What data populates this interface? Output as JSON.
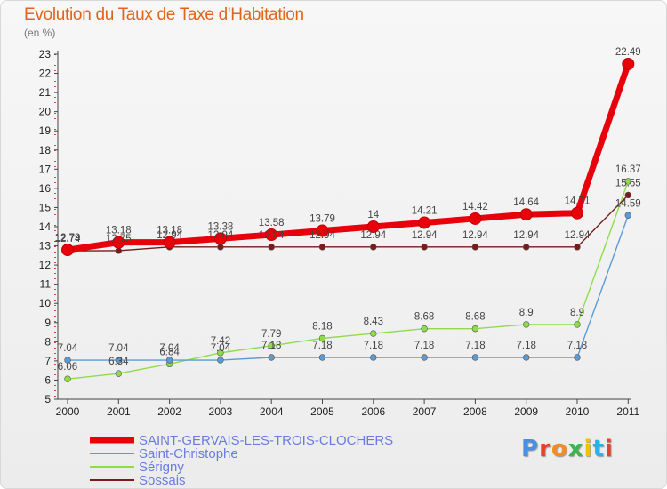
{
  "chart_data": {
    "type": "line",
    "title": "Evolution du Taux de Taxe d'Habitation",
    "subtitle": "(en %)",
    "xlabel": "",
    "ylabel": "",
    "categories": [
      "2000",
      "2001",
      "2002",
      "2003",
      "2004",
      "2005",
      "2006",
      "2007",
      "2008",
      "2009",
      "2010",
      "2011"
    ],
    "ylim": [
      5,
      23
    ],
    "yticks": [
      5,
      6,
      7,
      8,
      9,
      10,
      11,
      12,
      13,
      14,
      15,
      16,
      17,
      18,
      19,
      20,
      21,
      22,
      23
    ],
    "grid": false,
    "legend_position": "bottom-left",
    "series": [
      {
        "name": "SAINT-GERVAIS-LES-TROIS-CLOCHERS",
        "color": "#e8000b",
        "values": [
          12.79,
          13.18,
          13.18,
          13.38,
          13.58,
          13.79,
          14,
          14.21,
          14.42,
          14.64,
          14.71,
          22.49
        ],
        "labels": [
          "12.79",
          "13.18",
          "13.18",
          "13.38",
          "13.58",
          "13.79",
          "14",
          "14.21",
          "14.42",
          "14.64",
          "14.71",
          "22.49"
        ]
      },
      {
        "name": "Saint-Christophe",
        "color": "#5b9bd5",
        "values": [
          7.04,
          7.04,
          7.04,
          7.04,
          7.18,
          7.18,
          7.18,
          7.18,
          7.18,
          7.18,
          7.18,
          14.59
        ],
        "labels": [
          "7.04",
          "7.04",
          "7.04",
          "7.04",
          "7.18",
          "7.18",
          "7.18",
          "7.18",
          "7.18",
          "7.18",
          "7.18",
          "14.59"
        ]
      },
      {
        "name": "Sérigny",
        "color": "#8fdc4a",
        "values": [
          6.06,
          6.34,
          6.84,
          7.42,
          7.79,
          8.18,
          8.43,
          8.68,
          8.68,
          8.9,
          8.9,
          16.37
        ],
        "labels": [
          "6.06",
          "6.34",
          "6.84",
          "7.42",
          "7.79",
          "8.18",
          "8.43",
          "8.68",
          "8.68",
          "8.9",
          "8.9",
          "16.37"
        ]
      },
      {
        "name": "Sossais",
        "color": "#7a1a1a",
        "values": [
          12.74,
          12.75,
          12.94,
          12.94,
          12.94,
          12.94,
          12.94,
          12.94,
          12.94,
          12.94,
          12.94,
          15.65
        ],
        "labels": [
          "12.74",
          "12.75",
          "12.94",
          "12.94",
          "12.94",
          "12.94",
          "12.94",
          "12.94",
          "12.94",
          "12.94",
          "12.94",
          "15.65"
        ]
      }
    ]
  },
  "logo": {
    "text": "Proxiti",
    "colors": [
      "#4a90e2",
      "#e8412c",
      "#f28c28",
      "#3fb34f",
      "#f2c200",
      "#2bb1e6",
      "#e8412c"
    ]
  }
}
